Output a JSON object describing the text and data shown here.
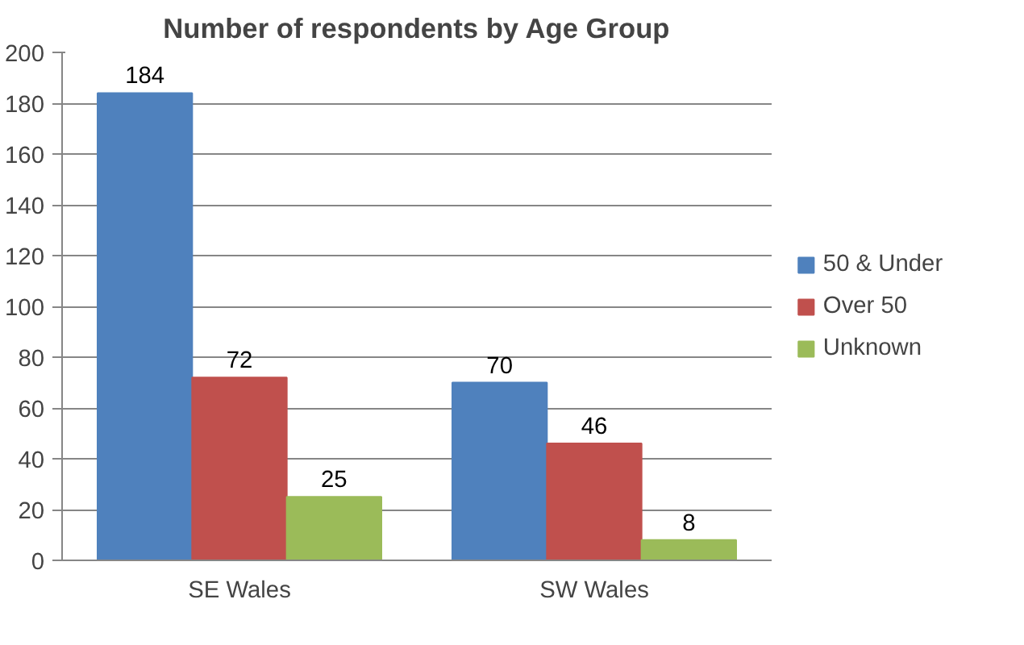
{
  "chart_data": {
    "type": "bar",
    "title": "Number of respondents by Age Group",
    "categories": [
      "SE Wales",
      "SW Wales"
    ],
    "series": [
      {
        "name": "50 & Under",
        "color": "#4f81bd",
        "values": [
          184,
          70
        ]
      },
      {
        "name": "Over 50",
        "color": "#c0504d",
        "values": [
          72,
          46
        ]
      },
      {
        "name": "Unknown",
        "color": "#9bbb59",
        "values": [
          25,
          8
        ]
      }
    ],
    "ylim": [
      0,
      200
    ],
    "yticks": [
      0,
      20,
      40,
      60,
      80,
      100,
      120,
      140,
      160,
      180,
      200
    ],
    "grid": "y",
    "legend": "right",
    "data_labels": true
  }
}
